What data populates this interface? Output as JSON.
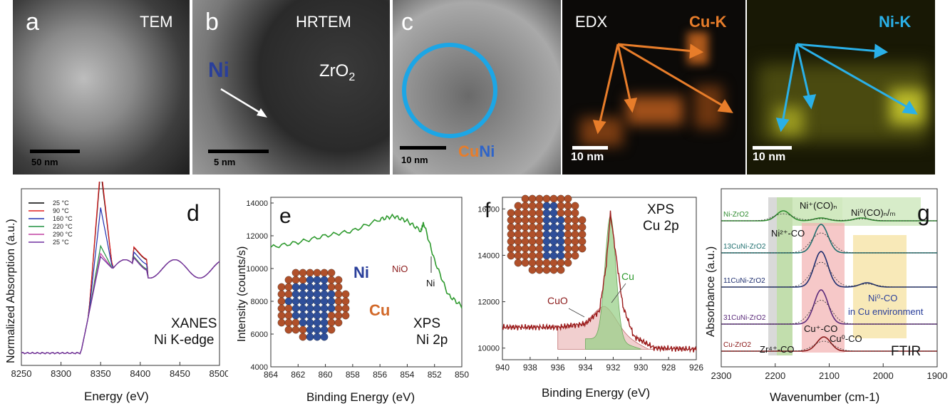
{
  "panel_a": {
    "letter": "a",
    "label": "TEM",
    "scale": "50 nm"
  },
  "panel_b": {
    "letter": "b",
    "label": "HRTEM",
    "ni_label": "Ni",
    "zro2_label": "ZrO",
    "zro2_sub": "2",
    "scale": "5 nm"
  },
  "panel_c": {
    "letter": "c",
    "cu_label": "Cu",
    "ni_label": "Ni",
    "scale": "10 nm",
    "edx_label": "EDX",
    "cuk_label": "Cu-K",
    "nik_label": "Ni-K",
    "scale2": "10 nm",
    "scale3": "10 nm"
  },
  "panel_d": {
    "letter": "d",
    "title1": "XANES",
    "title2": "Ni K-edge",
    "xlabel": "Energy (eV)",
    "ylabel": "Normalized Absorption (a.u.)"
  },
  "panel_e": {
    "letter": "e",
    "title1": "XPS",
    "title2": "Ni 2p",
    "nio_label": "NiO",
    "ni_label": "Ni",
    "struct_ni": "Ni",
    "struct_cu": "Cu",
    "xlabel": "Binding Energy (eV)",
    "ylabel": "Intensity (counts/s)"
  },
  "panel_f": {
    "letter": "f",
    "title1": "XPS",
    "title2": "Cu 2p",
    "cuo_label": "CuO",
    "cu_label": "Cu",
    "xlabel": "Binding Energy (eV)"
  },
  "panel_g": {
    "letter": "g",
    "xlabel": "Wavenumber (cm-1)",
    "ylabel": "Absorbance (a.u.)",
    "ftir_label": "FTIR",
    "samples": [
      "Ni-ZrO2",
      "13CuNi-ZrO2",
      "11CuNi-ZrO2",
      "31CuNi-ZrO2",
      "Cu-ZrO2"
    ],
    "annot": {
      "ni2": "Ni²⁺-CO",
      "niplus": "Ni⁺(CO)ₙ",
      "ni0n": "Ni⁰(CO)ₙ/ₘ",
      "ni0co": "Ni⁰-CO",
      "cuenv": "in Cu environment",
      "cuplus": "Cu⁺-CO",
      "cu0": "Cu⁰-CO",
      "zr": "Zr⁴⁺-CO"
    }
  },
  "chart_data": [
    {
      "type": "line",
      "panel": "d",
      "xlabel": "Energy (eV)",
      "ylabel": "Normalized Absorption (a.u.)",
      "xlim": [
        8250,
        8500
      ],
      "xticks": [
        8250,
        8300,
        8350,
        8400,
        8450,
        8500
      ],
      "series": [
        {
          "name": "25 °C",
          "color": "#000000"
        },
        {
          "name": "90 °C",
          "color": "#e02020"
        },
        {
          "name": "160 °C",
          "color": "#2030b0"
        },
        {
          "name": "220 °C",
          "color": "#209040"
        },
        {
          "name": "290 °C",
          "color": "#c040a0"
        },
        {
          "name": "25 °C",
          "color": "#7030a0"
        }
      ],
      "legend": "top-left"
    },
    {
      "type": "line",
      "panel": "e",
      "xlabel": "Binding Energy (eV)",
      "ylabel": "Intensity (counts/s)",
      "xlim": [
        864,
        850
      ],
      "ylim": [
        4000,
        14000
      ],
      "xticks": [
        864,
        862,
        860,
        858,
        856,
        854,
        852,
        850
      ],
      "yticks": [
        4000,
        6000,
        8000,
        10000,
        12000,
        14000
      ],
      "points": [
        [
          864,
          11300
        ],
        [
          862,
          11600
        ],
        [
          860,
          12000
        ],
        [
          858,
          12300
        ],
        [
          856,
          13000
        ],
        [
          855,
          13200
        ],
        [
          854,
          12900
        ],
        [
          853,
          12300
        ],
        [
          852.8,
          12800
        ],
        [
          852,
          10500
        ],
        [
          851,
          8400
        ],
        [
          850,
          7700
        ]
      ]
    },
    {
      "type": "line",
      "panel": "f",
      "xlabel": "Binding Energy (eV)",
      "xlim": [
        940,
        926
      ],
      "ylim": [
        9500,
        16500
      ],
      "xticks": [
        940,
        938,
        936,
        934,
        932,
        930,
        928,
        926
      ],
      "yticks": [
        10000,
        12000,
        14000,
        16000
      ],
      "points": [
        [
          940,
          10900
        ],
        [
          936,
          10900
        ],
        [
          934,
          11050
        ],
        [
          933,
          11600
        ],
        [
          932.5,
          13600
        ],
        [
          932.2,
          15800
        ],
        [
          931.8,
          14000
        ],
        [
          931.3,
          11800
        ],
        [
          930.5,
          10500
        ],
        [
          929,
          10000
        ],
        [
          926,
          9950
        ]
      ]
    },
    {
      "type": "line",
      "panel": "g",
      "xlabel": "Wavenumber (cm-1)",
      "ylabel": "Absorbance (a.u.)",
      "xlim": [
        2300,
        1900
      ],
      "xticks": [
        2300,
        2200,
        2100,
        2000,
        1900
      ],
      "series": [
        {
          "name": "Ni-ZrO2",
          "color": "#2e8b2e"
        },
        {
          "name": "13CuNi-ZrO2",
          "color": "#1f6f6f"
        },
        {
          "name": "11CuNi-ZrO2",
          "color": "#1f2f6f"
        },
        {
          "name": "31CuNi-ZrO2",
          "color": "#5a2a7a"
        },
        {
          "name": "Cu-ZrO2",
          "color": "#8b1a1a"
        }
      ]
    }
  ]
}
